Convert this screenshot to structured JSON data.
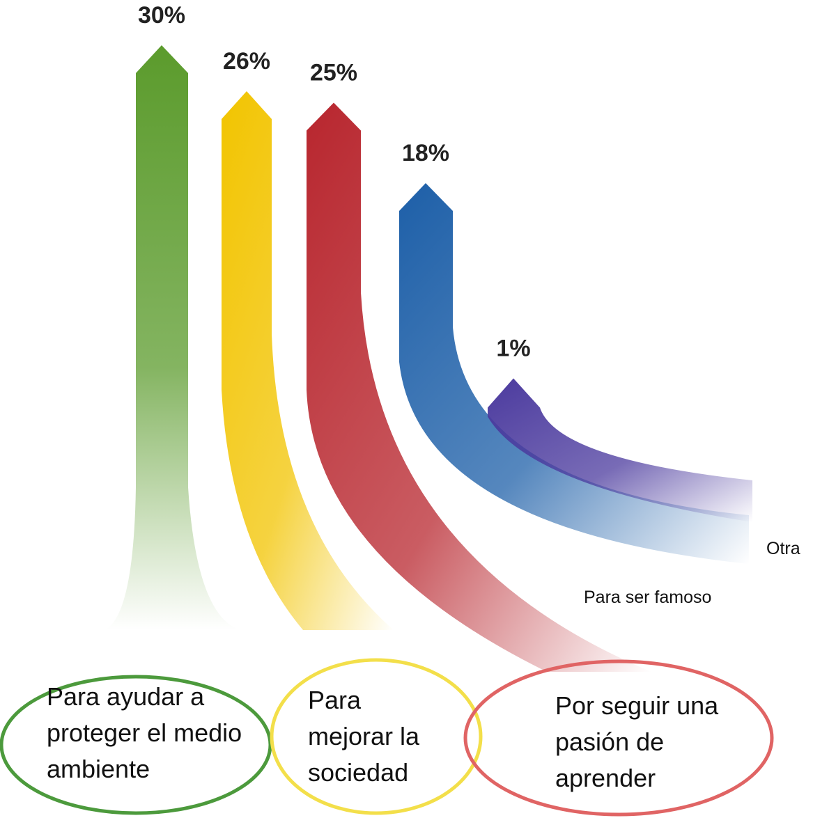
{
  "chart_data": {
    "type": "arrows",
    "categories": [
      "Para ayudar a proteger el medio ambiente",
      "Para mejorar la sociedad",
      "Por seguir una pasión de aprender",
      "Para ser famoso",
      "Otra"
    ],
    "values": [
      30,
      26,
      25,
      18,
      1
    ],
    "value_labels": [
      "30%",
      "26%",
      "25%",
      "18%",
      "1%"
    ],
    "colors": [
      "#5b9b2c",
      "#f2c400",
      "#b8262e",
      "#1d5fa8",
      "#4b3a9e"
    ]
  }
}
